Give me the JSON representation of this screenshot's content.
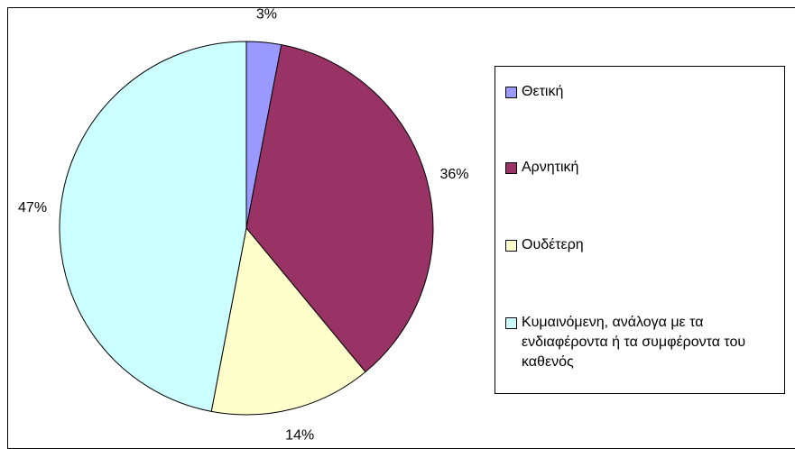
{
  "chart_data": {
    "type": "pie",
    "categories": [
      "Θετική",
      "Αρνητική",
      "Ουδέτερη",
      "Κυμαινόμενη, ανάλογα με τα ενδιαφέροντα ή τα συμφέροντα του καθενός"
    ],
    "values": [
      3,
      36,
      14,
      47
    ],
    "value_labels": [
      "3%",
      "36%",
      "14%",
      "47%"
    ],
    "colors": [
      "#9999ff",
      "#993366",
      "#ffffcc",
      "#ccffff"
    ],
    "legend": "right"
  }
}
